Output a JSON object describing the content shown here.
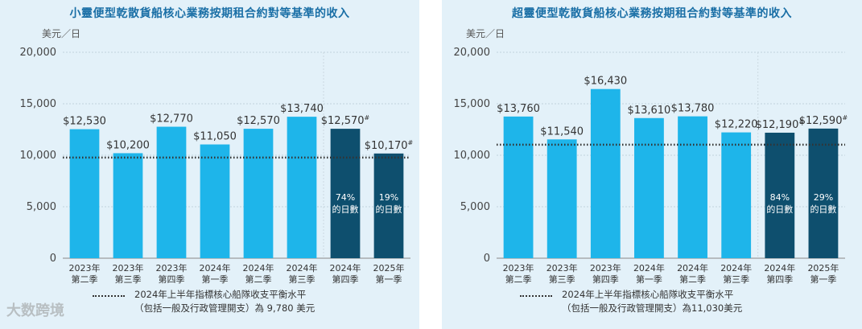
{
  "unit_label": "美元／日",
  "watermark": "大数跨境",
  "chart_data": [
    {
      "type": "bar",
      "title": "小靈便型乾散貨船核心業務按期租合約對等基準的收入",
      "ylim": [
        0,
        20000
      ],
      "yticks": [
        "0",
        "5,000",
        "10,000",
        "15,000",
        "20,000"
      ],
      "categories": [
        "2023年\n第二季",
        "2023年\n第三季",
        "2023年\n第四季",
        "2024年\n第一季",
        "2024年\n第二季",
        "2024年\n第三季",
        "2024年\n第四季",
        "2025年\n第一季"
      ],
      "values": [
        12530,
        10200,
        12770,
        11050,
        12570,
        13740,
        12570,
        10170
      ],
      "value_labels": [
        "$12,530",
        "$10,200",
        "$12,770",
        "$11,050",
        "$12,570",
        "$13,740",
        "$12,570#",
        "$10,170#"
      ],
      "bar_colors": [
        "#1eb5ea",
        "#1eb5ea",
        "#1eb5ea",
        "#1eb5ea",
        "#1eb5ea",
        "#1eb5ea",
        "#0e4f6e",
        "#0e4f6e"
      ],
      "inner_labels": [
        "",
        "",
        "",
        "",
        "",
        "",
        "74%\n的日數",
        "19%\n的日數"
      ],
      "breakeven": 9780,
      "legend": [
        "2024年上半年指標核心船隊收支平衡水平",
        "（包括一般及行政管理開支）為 9,780 美元"
      ]
    },
    {
      "type": "bar",
      "title": "超靈便型乾散貨船核心業務按期租合約對等基準的收入",
      "ylim": [
        0,
        20000
      ],
      "yticks": [
        "0",
        "5,000",
        "10,000",
        "15,000",
        "20,000"
      ],
      "categories": [
        "2023年\n第二季",
        "2023年\n第三季",
        "2023年\n第四季",
        "2024年\n第一季",
        "2024年\n第二季",
        "2024年\n第三季",
        "2024年\n第四季",
        "2025年\n第一季"
      ],
      "values": [
        13760,
        11540,
        16430,
        13610,
        13780,
        12220,
        12190,
        12590
      ],
      "value_labels": [
        "$13,760",
        "$11,540",
        "$16,430",
        "$13,610",
        "$13,780",
        "$12,220",
        "$12,190#",
        "$12,590#"
      ],
      "bar_colors": [
        "#1eb5ea",
        "#1eb5ea",
        "#1eb5ea",
        "#1eb5ea",
        "#1eb5ea",
        "#1eb5ea",
        "#0e4f6e",
        "#0e4f6e"
      ],
      "inner_labels": [
        "",
        "",
        "",
        "",
        "",
        "",
        "84%\n的日數",
        "29%\n的日數"
      ],
      "breakeven": 11030,
      "legend": [
        "2024年上半年指標核心船隊收支平衡水平",
        "（包括一般及行政管理開支）為11,030美元"
      ]
    }
  ]
}
